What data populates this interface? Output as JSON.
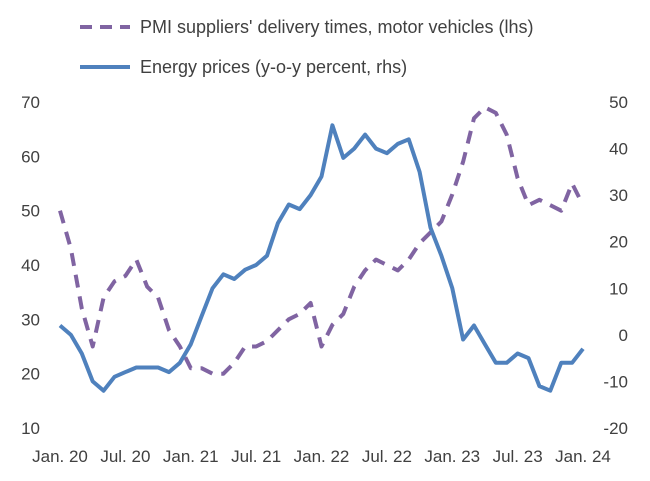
{
  "chart_data": {
    "type": "line",
    "x": [
      "Jan. 20",
      "Feb. 20",
      "Mar. 20",
      "Apr. 20",
      "May 20",
      "Jun. 20",
      "Jul. 20",
      "Aug. 20",
      "Sep. 20",
      "Oct. 20",
      "Nov. 20",
      "Dec. 20",
      "Jan. 21",
      "Feb. 21",
      "Mar. 21",
      "Apr. 21",
      "May 21",
      "Jun. 21",
      "Jul. 21",
      "Aug. 21",
      "Sep. 21",
      "Oct. 21",
      "Nov. 21",
      "Dec. 21",
      "Jan. 22",
      "Feb. 22",
      "Mar. 22",
      "Apr. 22",
      "May 22",
      "Jun. 22",
      "Jul. 22",
      "Aug. 22",
      "Sep. 22",
      "Oct. 22",
      "Nov. 22",
      "Dec. 22",
      "Jan. 23",
      "Feb. 23",
      "Mar. 23",
      "Apr. 23",
      "May 23",
      "Jun. 23",
      "Jul. 23",
      "Aug. 23",
      "Sep. 23",
      "Oct. 23",
      "Nov. 23",
      "Dec. 23",
      "Jan. 24"
    ],
    "xticks": [
      "Jan. 20",
      "Jul. 20",
      "Jan. 21",
      "Jul. 21",
      "Jan. 22",
      "Jul. 22",
      "Jan. 23",
      "Jul. 23",
      "Jan. 24"
    ],
    "y_left": {
      "ticks": [
        "10",
        "20",
        "30",
        "40",
        "50",
        "60",
        "70"
      ],
      "range": [
        10,
        70
      ]
    },
    "y_right": {
      "ticks": [
        "-20",
        "-10",
        "0",
        "10",
        "20",
        "30",
        "40",
        "50"
      ],
      "range": [
        -20,
        50
      ]
    },
    "legend_position": "top",
    "grid": false,
    "series": [
      {
        "name": "PMI suppliers' delivery times, motor vehicles (lhs)",
        "axis": "left",
        "style": "dashed",
        "color": "#8064A2",
        "values": [
          50,
          43,
          32,
          25,
          34,
          37,
          38,
          41,
          36,
          34,
          28,
          25,
          21,
          21,
          20,
          20,
          22,
          25,
          25,
          26,
          28,
          30,
          31,
          33,
          25,
          29,
          31,
          36,
          39,
          41,
          40,
          39,
          41,
          44,
          46,
          48,
          53,
          59,
          67,
          69,
          68,
          64,
          56,
          51,
          52,
          51,
          50,
          55,
          51
        ]
      },
      {
        "name": "Energy prices (y-o-y percent, rhs)",
        "axis": "right",
        "style": "solid",
        "color": "#4F81BD",
        "values": [
          2,
          0,
          -4,
          -10,
          -12,
          -9,
          -8,
          -7,
          -7,
          -7,
          -8,
          -6,
          -2,
          4,
          10,
          13,
          12,
          14,
          15,
          17,
          24,
          28,
          27,
          30,
          34,
          45,
          38,
          40,
          43,
          40,
          39,
          41,
          42,
          35,
          23,
          17,
          10,
          -1,
          2,
          -2,
          -6,
          -6,
          -4,
          -5,
          -11,
          -12,
          -6,
          -6,
          -3
        ]
      }
    ]
  }
}
